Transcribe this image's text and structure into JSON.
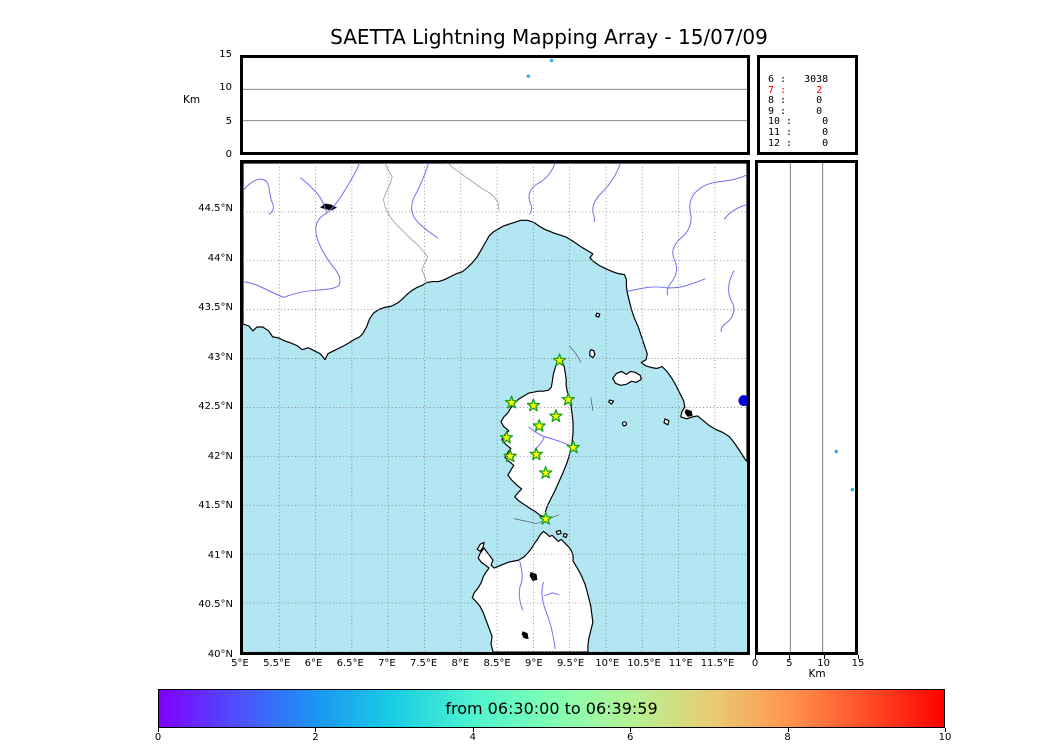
{
  "title": "SAETTA Lightning Mapping Array - 15/07/09",
  "colors": {
    "sea": "#b2e6f2",
    "land": "#ffffff",
    "coast": "#000000",
    "river": "#7070ee",
    "country_border": "#999999",
    "grid": "#808080",
    "panel_grid": "#777777",
    "star_fill": "#ffff00",
    "star_stroke": "#18a018",
    "source_dot": "#2ab0e8",
    "flash_dot": "#0000d8",
    "lake": "#000000",
    "highlight": "#ff0000"
  },
  "altitude_panel": {
    "ylabel": "Km",
    "yticks": [
      "15",
      "10",
      "5",
      "0"
    ],
    "grid_km": [
      5,
      10
    ],
    "points": [
      {
        "lon": 9.25,
        "km": 14.6
      },
      {
        "lon": 8.93,
        "km": 12.1
      }
    ]
  },
  "counts_panel": {
    "rows": [
      {
        "text": "6 :   3038",
        "color": "#000000"
      },
      {
        "text": "7 :     2",
        "color": "#ff0000"
      },
      {
        "text": "8 :     0",
        "color": "#000000"
      },
      {
        "text": "9 :     0",
        "color": "#000000"
      },
      {
        "text": "10 :     0",
        "color": "#000000"
      },
      {
        "text": "11 :     0",
        "color": "#000000"
      },
      {
        "text": "12 :     0",
        "color": "#000000"
      }
    ]
  },
  "map": {
    "lat_ticks": [
      "44.5°N",
      "44°N",
      "43.5°N",
      "43°N",
      "42.5°N",
      "42°N",
      "41.5°N",
      "41°N",
      "40.5°N",
      "40°N"
    ],
    "lon_ticks": [
      "5°E",
      "5.5°E",
      "6°E",
      "6.5°E",
      "7°E",
      "7.5°E",
      "8°E",
      "8.5°E",
      "9°E",
      "9.5°E",
      "10°E",
      "10.5°E",
      "11°E",
      "11.5°E"
    ],
    "lon_range": [
      5,
      11.94
    ],
    "lat_range": [
      40,
      45
    ],
    "stations": [
      {
        "lon": 9.36,
        "lat": 42.98
      },
      {
        "lon": 8.7,
        "lat": 42.55
      },
      {
        "lon": 9.0,
        "lat": 42.52
      },
      {
        "lon": 9.48,
        "lat": 42.58
      },
      {
        "lon": 9.31,
        "lat": 42.41
      },
      {
        "lon": 9.08,
        "lat": 42.31
      },
      {
        "lon": 8.63,
        "lat": 42.19
      },
      {
        "lon": 9.55,
        "lat": 42.09
      },
      {
        "lon": 9.04,
        "lat": 42.02
      },
      {
        "lon": 8.68,
        "lat": 42.0
      },
      {
        "lon": 9.17,
        "lat": 41.83
      },
      {
        "lon": 9.17,
        "lat": 41.36
      }
    ],
    "flash_cluster": {
      "lon": 11.9,
      "lat": 42.57
    }
  },
  "side_panel": {
    "xlabel": "Km",
    "xticks": [
      "0",
      "5",
      "10",
      "15"
    ],
    "grid_km": [
      5,
      10
    ],
    "points": [
      {
        "km": 12.1,
        "lat": 42.05
      },
      {
        "km": 14.6,
        "lat": 41.66
      }
    ]
  },
  "colorbar": {
    "label": "from 06:30:00 to 06:39:59",
    "ticks": [
      "0",
      "2",
      "4",
      "6",
      "8",
      "10"
    ],
    "range": [
      0,
      10
    ],
    "gradient": [
      "#8000ff",
      "#4d4ffc",
      "#1a96f3",
      "#1acee3",
      "#4df3ce",
      "#80ffb4",
      "#b3f396",
      "#e6ce74",
      "#ff964f",
      "#ff4f28",
      "#ff0000"
    ]
  },
  "chart_data": [
    {
      "type": "scatter",
      "panel": "altitude_vs_longitude",
      "ylabel": "Km",
      "ylim": [
        0,
        15
      ],
      "xlim": [
        5,
        11.94
      ],
      "points": [
        [
          9.25,
          14.6
        ],
        [
          8.93,
          12.1
        ]
      ]
    },
    {
      "type": "table",
      "panel": "source_counts",
      "columns": [
        "level",
        "count"
      ],
      "rows": [
        [
          6,
          3038
        ],
        [
          7,
          2
        ],
        [
          8,
          0
        ],
        [
          9,
          0
        ],
        [
          10,
          0
        ],
        [
          11,
          0
        ],
        [
          12,
          0
        ]
      ],
      "highlighted_level": 7
    },
    {
      "type": "scatter",
      "panel": "map_longitude_latitude",
      "xlim": [
        5,
        11.94
      ],
      "ylim": [
        40,
        45
      ],
      "stations_lon_lat": [
        [
          9.36,
          42.98
        ],
        [
          8.7,
          42.55
        ],
        [
          9.0,
          42.52
        ],
        [
          9.48,
          42.58
        ],
        [
          9.31,
          42.41
        ],
        [
          9.08,
          42.31
        ],
        [
          8.63,
          42.19
        ],
        [
          9.55,
          42.09
        ],
        [
          9.04,
          42.02
        ],
        [
          8.68,
          42.0
        ],
        [
          9.17,
          41.83
        ],
        [
          9.17,
          41.36
        ]
      ],
      "flash_cluster_lon_lat": [
        11.9,
        42.57
      ]
    },
    {
      "type": "scatter",
      "panel": "altitude_vs_latitude",
      "xlabel": "Km",
      "xlim": [
        0,
        15
      ],
      "ylim": [
        40,
        45
      ],
      "points": [
        [
          12.1,
          42.05
        ],
        [
          14.6,
          41.66
        ]
      ]
    },
    {
      "type": "colorbar",
      "label": "from 06:30:00 to 06:39:59",
      "range": [
        0,
        10
      ],
      "ticks": [
        0,
        2,
        4,
        6,
        8,
        10
      ],
      "colormap": "rainbow"
    }
  ]
}
